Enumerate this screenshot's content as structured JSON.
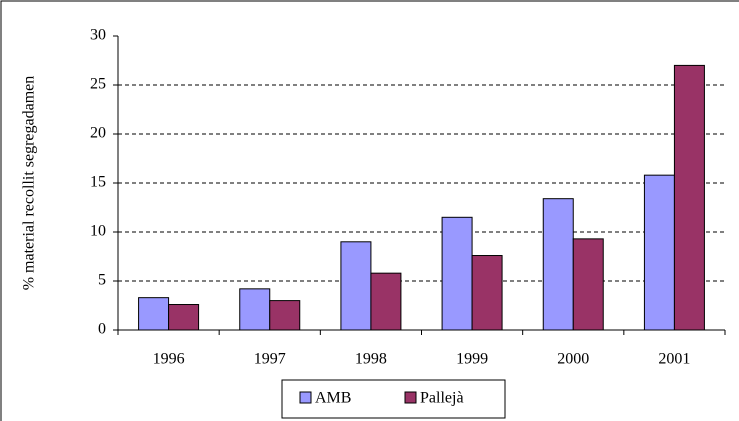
{
  "chart_data": {
    "type": "bar",
    "y_label": "% material recollit segregadamen",
    "categories": [
      "1996",
      "1997",
      "1998",
      "1999",
      "2000",
      "2001"
    ],
    "series": [
      {
        "name": "AMB",
        "color": "#9999ff",
        "values": [
          3.3,
          4.2,
          9.0,
          11.5,
          13.4,
          15.8
        ]
      },
      {
        "name": "Pallejà",
        "color": "#993366",
        "values": [
          2.6,
          3.0,
          5.8,
          7.6,
          9.3,
          27.0
        ]
      }
    ],
    "ylim": [
      0,
      30
    ],
    "yticks": [
      0,
      5,
      10,
      15,
      20,
      25,
      30
    ],
    "grid": true,
    "legend": "bottom"
  }
}
